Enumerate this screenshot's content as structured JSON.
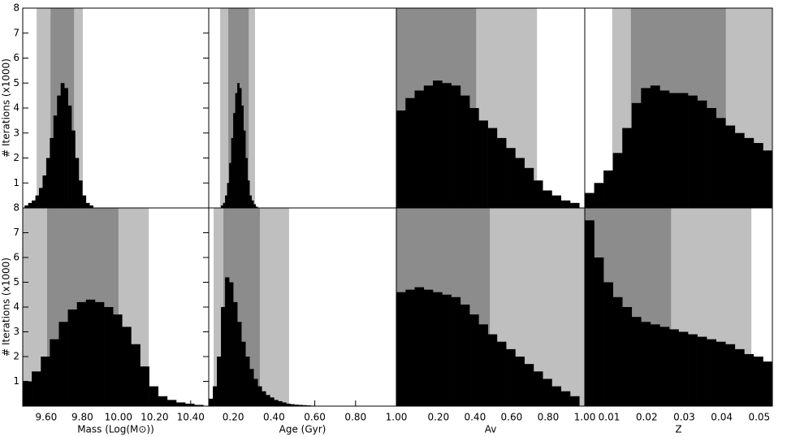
{
  "chart_data": [
    {
      "type": "histogram",
      "ylabel": "# Iterations (x1000)",
      "color": "#000000",
      "bins": [
        9.48,
        9.5,
        9.52,
        9.54,
        9.56,
        9.58,
        9.6,
        9.62,
        9.64,
        9.66,
        9.68,
        9.7,
        9.72,
        9.74,
        9.76,
        9.78,
        9.8,
        9.82,
        9.84,
        9.86
      ],
      "values": [
        0.1,
        0.2,
        0.3,
        0.5,
        0.8,
        1.3,
        2.0,
        2.8,
        3.7,
        4.5,
        5.0,
        4.8,
        4.1,
        3.1,
        2.0,
        1.1,
        0.5,
        0.2,
        0.1
      ],
      "outer_band": [
        9.547,
        9.803
      ],
      "inner_band": [
        9.624,
        9.754
      ],
      "outer_color": "#bfbfbf",
      "inner_color": "#8c8c8c",
      "xlim": [
        9.47,
        10.5
      ],
      "ylim": [
        0,
        8
      ],
      "yticks": [
        1,
        2,
        3,
        4,
        5,
        6,
        7,
        8
      ]
    },
    {
      "type": "histogram",
      "color": "#000000",
      "bins": [
        0.14,
        0.15,
        0.16,
        0.17,
        0.18,
        0.19,
        0.2,
        0.21,
        0.22,
        0.23,
        0.24,
        0.25,
        0.26,
        0.27,
        0.28,
        0.29,
        0.3,
        0.31,
        0.32
      ],
      "values": [
        0.1,
        0.2,
        0.5,
        1.0,
        1.8,
        2.8,
        3.8,
        4.6,
        5.0,
        4.8,
        4.1,
        3.1,
        2.0,
        1.1,
        0.5,
        0.3,
        0.15,
        0.05
      ],
      "outer_band": [
        0.136,
        0.307
      ],
      "inner_band": [
        0.176,
        0.276
      ],
      "outer_color": "#bfbfbf",
      "inner_color": "#8c8c8c",
      "xlim": [
        0.08,
        1.0
      ],
      "ylim": [
        0,
        8
      ]
    },
    {
      "type": "histogram",
      "color": "#000000",
      "bins": [
        -0.03,
        0.02,
        0.07,
        0.12,
        0.17,
        0.22,
        0.27,
        0.32,
        0.37,
        0.42,
        0.47,
        0.52,
        0.57,
        0.62,
        0.67,
        0.72,
        0.77,
        0.82,
        0.87,
        0.92,
        0.97
      ],
      "values": [
        3.9,
        4.4,
        4.7,
        4.9,
        5.1,
        5.0,
        4.9,
        4.5,
        4.0,
        3.5,
        3.2,
        2.8,
        2.4,
        2.0,
        1.6,
        1.1,
        0.7,
        0.5,
        0.3,
        0.2
      ],
      "outer_band": [
        -0.03,
        0.739
      ],
      "inner_band": [
        -0.03,
        0.406
      ],
      "outer_color": "#bfbfbf",
      "inner_color": "#8c8c8c",
      "xlim": [
        -0.03,
        1.0
      ],
      "ylim": [
        0,
        8
      ]
    },
    {
      "type": "histogram",
      "color": "#000000",
      "bins": [
        0.0035,
        0.006,
        0.0085,
        0.011,
        0.0135,
        0.016,
        0.0185,
        0.021,
        0.0235,
        0.026,
        0.0285,
        0.031,
        0.0335,
        0.036,
        0.0385,
        0.041,
        0.0435,
        0.046,
        0.0485,
        0.051,
        0.0535
      ],
      "values": [
        0.6,
        1.0,
        1.5,
        2.2,
        3.2,
        4.2,
        4.8,
        4.9,
        4.7,
        4.6,
        4.6,
        4.5,
        4.3,
        4.0,
        3.6,
        3.3,
        3.0,
        2.8,
        2.6,
        2.3
      ],
      "outer_band": [
        0.0108,
        0.0535
      ],
      "inner_band": [
        0.0158,
        0.0411
      ],
      "outer_color": "#bfbfbf",
      "inner_color": "#8c8c8c",
      "xlim": [
        0.0035,
        0.0535
      ],
      "ylim": [
        0,
        8
      ]
    },
    {
      "type": "histogram",
      "ylabel": "# Iterations (x1000)",
      "xlabel": "Mass (Log(M⊙))",
      "color": "#000000",
      "bins": [
        9.47,
        9.52,
        9.57,
        9.62,
        9.67,
        9.72,
        9.77,
        9.82,
        9.87,
        9.92,
        9.97,
        10.02,
        10.07,
        10.12,
        10.17,
        10.22,
        10.27,
        10.32,
        10.37,
        10.42,
        10.47
      ],
      "values": [
        1.0,
        1.4,
        2.0,
        2.7,
        3.4,
        3.9,
        4.2,
        4.3,
        4.2,
        4.0,
        3.7,
        3.2,
        2.5,
        1.6,
        0.8,
        0.4,
        0.25,
        0.15,
        0.1,
        0.05
      ],
      "outer_band": [
        9.47,
        10.168
      ],
      "inner_band": [
        9.605,
        10.0
      ],
      "outer_color": "#bfbfbf",
      "inner_color": "#8c8c8c",
      "xlim": [
        9.47,
        10.5
      ],
      "ylim": [
        0,
        8
      ],
      "yticks": [
        1,
        2,
        3,
        4,
        5,
        6,
        7,
        8
      ],
      "xticks": [
        {
          "value": 9.6,
          "label": "9.60"
        },
        {
          "value": 9.8,
          "label": "9.80"
        },
        {
          "value": 10.0,
          "label": "10.00"
        },
        {
          "value": 10.2,
          "label": "10.20"
        },
        {
          "value": 10.4,
          "label": "10.40"
        }
      ]
    },
    {
      "type": "histogram",
      "xlabel": "Age (Gyr)",
      "color": "#000000",
      "bins": [
        0.08,
        0.1,
        0.12,
        0.14,
        0.16,
        0.18,
        0.2,
        0.22,
        0.24,
        0.26,
        0.28,
        0.3,
        0.32,
        0.34,
        0.36,
        0.38,
        0.4,
        0.42,
        0.44,
        0.46,
        0.48,
        0.5,
        0.52,
        0.54,
        0.56,
        0.58,
        0.6
      ],
      "values": [
        0.3,
        0.8,
        2.0,
        4.0,
        5.2,
        5.0,
        4.2,
        3.4,
        2.6,
        2.0,
        1.5,
        1.1,
        0.8,
        0.6,
        0.45,
        0.35,
        0.25,
        0.2,
        0.15,
        0.1,
        0.08,
        0.06,
        0.05,
        0.04,
        0.03,
        0.02
      ],
      "outer_band": [
        0.104,
        0.474
      ],
      "inner_band": [
        0.152,
        0.331
      ],
      "outer_color": "#bfbfbf",
      "inner_color": "#8c8c8c",
      "xlim": [
        0.08,
        1.0
      ],
      "ylim": [
        0,
        8
      ],
      "xticks": [
        {
          "value": 0.2,
          "label": "0.20"
        },
        {
          "value": 0.4,
          "label": "0.40"
        },
        {
          "value": 0.6,
          "label": "0.60"
        },
        {
          "value": 0.8,
          "label": "0.80"
        },
        {
          "value": 1.0,
          "label": "1.00"
        }
      ]
    },
    {
      "type": "histogram",
      "xlabel": "Av",
      "color": "#000000",
      "bins": [
        -0.03,
        0.02,
        0.07,
        0.12,
        0.17,
        0.22,
        0.27,
        0.32,
        0.37,
        0.42,
        0.47,
        0.52,
        0.57,
        0.62,
        0.67,
        0.72,
        0.77,
        0.82,
        0.87,
        0.92,
        0.97
      ],
      "values": [
        4.6,
        4.7,
        4.8,
        4.7,
        4.6,
        4.5,
        4.4,
        4.1,
        3.7,
        3.3,
        2.9,
        2.6,
        2.3,
        2.0,
        1.7,
        1.4,
        1.1,
        0.8,
        0.6,
        0.4
      ],
      "outer_band": [
        -0.03,
        1.0
      ],
      "inner_band": [
        -0.03,
        0.481
      ],
      "outer_color": "#bfbfbf",
      "inner_color": "#8c8c8c",
      "xlim": [
        -0.03,
        1.0
      ],
      "ylim": [
        0,
        8
      ],
      "xticks": [
        {
          "value": 0.2,
          "label": "0.20"
        },
        {
          "value": 0.4,
          "label": "0.40"
        },
        {
          "value": 0.6,
          "label": "0.60"
        },
        {
          "value": 0.8,
          "label": "0.80"
        },
        {
          "value": 1.0,
          "label": "1.00"
        }
      ]
    },
    {
      "type": "histogram",
      "xlabel": "Z",
      "color": "#000000",
      "bins": [
        0.0035,
        0.006,
        0.0085,
        0.011,
        0.0135,
        0.016,
        0.0185,
        0.021,
        0.0235,
        0.026,
        0.0285,
        0.031,
        0.0335,
        0.036,
        0.0385,
        0.041,
        0.0435,
        0.046,
        0.0485,
        0.051,
        0.0535
      ],
      "values": [
        7.5,
        6.0,
        5.0,
        4.4,
        4.0,
        3.6,
        3.4,
        3.3,
        3.2,
        3.1,
        3.0,
        2.9,
        2.8,
        2.7,
        2.6,
        2.5,
        2.3,
        2.1,
        2.0,
        1.8
      ],
      "outer_band": [
        0.0035,
        0.0479
      ],
      "inner_band": [
        0.0035,
        0.0265
      ],
      "outer_color": "#bfbfbf",
      "inner_color": "#8c8c8c",
      "xlim": [
        0.0035,
        0.0535
      ],
      "ylim": [
        0,
        8
      ],
      "xticks": [
        0.01,
        0.02,
        0.03,
        0.04,
        0.05
      ]
    }
  ]
}
